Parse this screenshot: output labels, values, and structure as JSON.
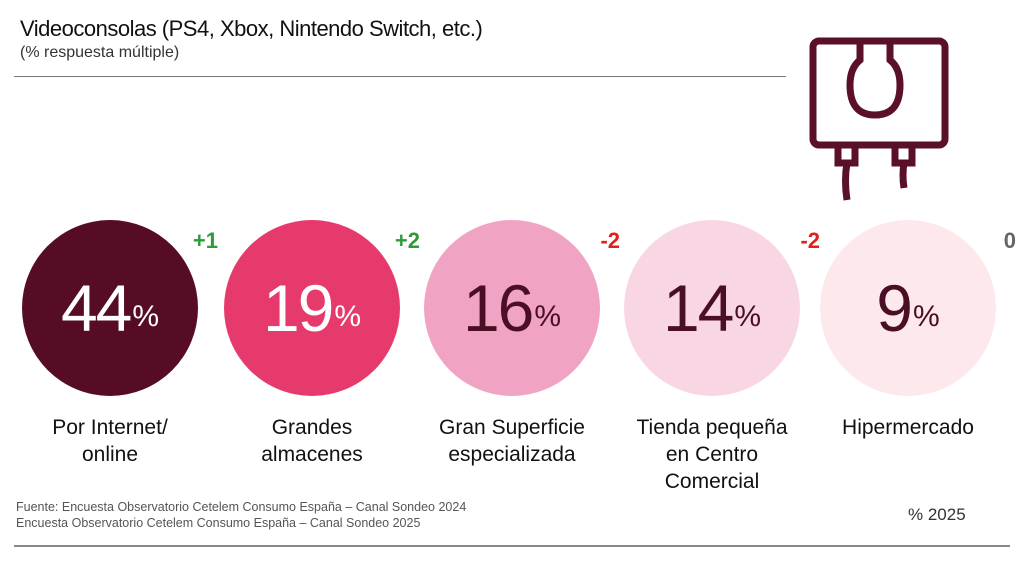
{
  "chart_data": {
    "type": "bubble-infographic",
    "title": "Videoconsolas (PS4, Xbox, Nintendo Switch, etc.)",
    "subtitle": "(% respuesta múltiple)",
    "unit": "%",
    "legend": "% 2025",
    "categories": [
      "Por Internet/\nonline",
      "Grandes\nalmacenes",
      "Gran Superficie\nespecializada",
      "Tienda pequeña\nen Centro\nComercial",
      "Hipermercado"
    ],
    "values": [
      44,
      19,
      16,
      14,
      9
    ],
    "deltas": [
      "+1",
      "+2",
      "-2",
      "-2",
      "0"
    ],
    "colors": [
      "#560c24",
      "#e63a6c",
      "#f0a3c3",
      "#f9d6e3",
      "#fde9ec"
    ],
    "text_colors": [
      "#ffffff",
      "#ffffff",
      "#4a0f25",
      "#4a0f25",
      "#4a0f25"
    ],
    "delta_colors": [
      "#2e9a3c",
      "#2e9a3c",
      "#e0201b",
      "#e0201b",
      "#666666"
    ]
  },
  "icon": "game-console-icon",
  "source": [
    "Fuente: Encuesta Observatorio Cetelem Consumo España – Canal Sondeo 2024",
    "Encuesta Observatorio Cetelem Consumo España – Canal Sondeo 2025"
  ]
}
